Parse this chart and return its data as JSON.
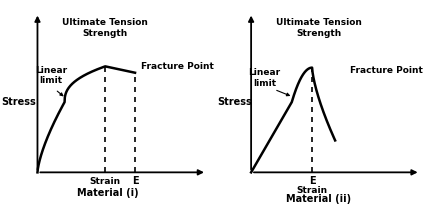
{
  "background_color": "#ffffff",
  "fig_width": 4.36,
  "fig_height": 2.11,
  "dpi": 100,
  "panel_i": {
    "curve_color": "black",
    "curve_lw": 1.8,
    "stress_label": "Stress",
    "strain_label": "Strain",
    "material_label": "Material (i)",
    "linear_limit_label": "Linear\nlimit",
    "uts_label": "Ultimate Tension\nStrength",
    "fracture_label": "Fracture Point",
    "strain_tick": "Strain",
    "E_label": "E"
  },
  "panel_ii": {
    "curve_color": "black",
    "curve_lw": 1.8,
    "stress_label": "Stress",
    "strain_label": "Strain",
    "material_label": "Material (ii)",
    "linear_limit_label": "Linear\nlimit",
    "uts_label": "Ultimate Tension\nStrength",
    "fracture_label": "Fracture Point",
    "E_label": "E"
  }
}
